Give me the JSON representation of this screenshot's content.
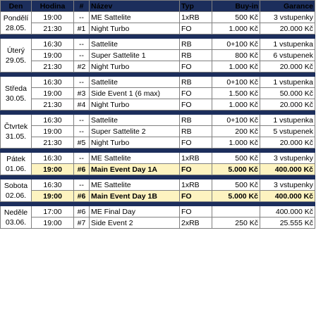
{
  "headers": {
    "day": "Den",
    "time": "Hodina",
    "num": "#",
    "name": "Název",
    "type": "Typ",
    "buyin": "Buy-in",
    "guarantee": "Garance"
  },
  "days": [
    {
      "name": "Pondělí",
      "date": "28.05.",
      "rows": [
        {
          "time": "19:00",
          "num": "--",
          "name": "ME Sattelite",
          "type": "1xRB",
          "buyin": "500 Kč",
          "guarantee": "3 vstupenky",
          "main": false
        },
        {
          "time": "21:30",
          "num": "#1",
          "name": "Night Turbo",
          "type": "FO",
          "buyin": "1.000 Kč",
          "guarantee": "20.000 Kč",
          "main": false
        }
      ]
    },
    {
      "name": "Úterý",
      "date": "29.05.",
      "rows": [
        {
          "time": "16:30",
          "num": "--",
          "name": "Sattelite",
          "type": "RB",
          "buyin": "0+100 Kč",
          "guarantee": "1 vstupenka",
          "main": false
        },
        {
          "time": "19:00",
          "num": "--",
          "name": "Super Sattelite 1",
          "type": "RB",
          "buyin": "800 Kč",
          "guarantee": "6 vstupenek",
          "main": false
        },
        {
          "time": "21:30",
          "num": "#2",
          "name": "Night Turbo",
          "type": "FO",
          "buyin": "1.000 Kč",
          "guarantee": "20.000 Kč",
          "main": false
        }
      ]
    },
    {
      "name": "Středa",
      "date": "30.05.",
      "rows": [
        {
          "time": "16:30",
          "num": "--",
          "name": "Sattelite",
          "type": "RB",
          "buyin": "0+100 Kč",
          "guarantee": "1 vstupenka",
          "main": false
        },
        {
          "time": "19:00",
          "num": "#3",
          "name": "Side Event 1 (6 max)",
          "type": "FO",
          "buyin": "1.500 Kč",
          "guarantee": "50.000 Kč",
          "main": false
        },
        {
          "time": "21:30",
          "num": "#4",
          "name": "Night Turbo",
          "type": "FO",
          "buyin": "1.000 Kč",
          "guarantee": "20.000 Kč",
          "main": false
        }
      ]
    },
    {
      "name": "Čtvrtek",
      "date": "31.05.",
      "rows": [
        {
          "time": "16:30",
          "num": "--",
          "name": "Sattelite",
          "type": "RB",
          "buyin": "0+100 Kč",
          "guarantee": "1 vstupenka",
          "main": false
        },
        {
          "time": "19:00",
          "num": "--",
          "name": "Super Sattelite 2",
          "type": "RB",
          "buyin": "200 Kč",
          "guarantee": "5 vstupenek",
          "main": false
        },
        {
          "time": "21:30",
          "num": "#5",
          "name": "Night Turbo",
          "type": "FO",
          "buyin": "1.000 Kč",
          "guarantee": "20.000 Kč",
          "main": false
        }
      ]
    },
    {
      "name": "Pátek",
      "date": "01.06.",
      "rows": [
        {
          "time": "16:30",
          "num": "--",
          "name": "ME Sattelite",
          "type": "1xRB",
          "buyin": "500 Kč",
          "guarantee": "3 vstupenky",
          "main": false
        },
        {
          "time": "19:00",
          "num": "#6",
          "name": "Main Event Day 1A",
          "type": "FO",
          "buyin": "5.000 Kč",
          "guarantee": "400.000 Kč",
          "main": true
        }
      ]
    },
    {
      "name": "Sobota",
      "date": "02.06.",
      "rows": [
        {
          "time": "16:30",
          "num": "--",
          "name": "ME Sattelite",
          "type": "1xRB",
          "buyin": "500 Kč",
          "guarantee": "3 vstupenky",
          "main": false
        },
        {
          "time": "19:00",
          "num": "#6",
          "name": "Main Event Day 1B",
          "type": "FO",
          "buyin": "5.000 Kč",
          "guarantee": "400.000 Kč",
          "main": true
        }
      ]
    },
    {
      "name": "Neděle",
      "date": "03.06.",
      "rows": [
        {
          "time": "17:00",
          "num": "#6",
          "name": "ME Final Day",
          "type": "FO",
          "buyin": "",
          "guarantee": "400.000 Kč",
          "main": false
        },
        {
          "time": "19:00",
          "num": "#7",
          "name": "Side Event 2",
          "type": "2xRB",
          "buyin": "250 Kč",
          "guarantee": "25.555 Kč",
          "main": false
        }
      ]
    }
  ]
}
